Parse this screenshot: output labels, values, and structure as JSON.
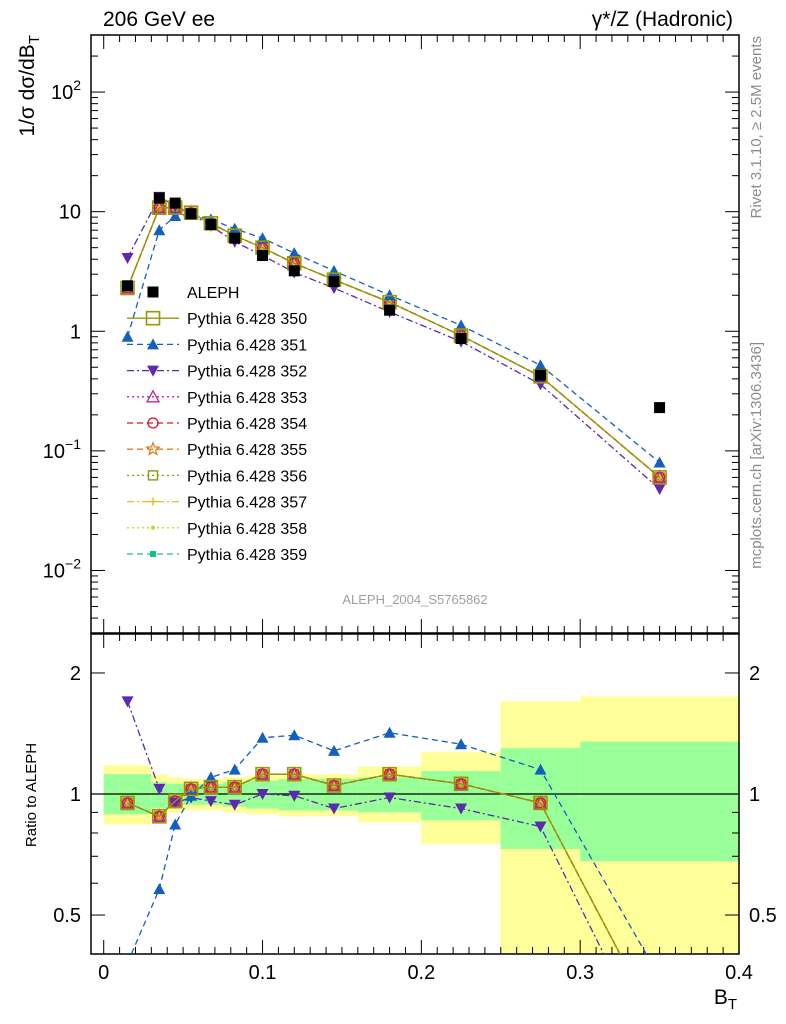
{
  "header": {
    "left": "206 GeV ee",
    "right": "γ*/Z (Hadronic)"
  },
  "side_text": {
    "rivet": "Rivet 3.1.10, ≥ 2.5M events",
    "mcplots": "mcplots.cern.ch [arXiv:1306.3436]"
  },
  "watermark": "ALEPH_2004_S5765862",
  "colors": {
    "band_inner": "#99ff99",
    "band_outer": "#ffff99"
  },
  "chart_data": [
    {
      "type": "scatter",
      "panel": "main",
      "title": "",
      "ylabel": "1/σ dσ/dB_T",
      "yscale": "log",
      "ylim": [
        0.003,
        300
      ],
      "xlim": [
        -0.008,
        0.4
      ],
      "ytick_labels": [
        "10^-2",
        "10^-1",
        "1",
        "10",
        "10^2"
      ],
      "x": [
        0.015,
        0.035,
        0.045,
        0.055,
        0.0675,
        0.0825,
        0.1,
        0.12,
        0.145,
        0.18,
        0.225,
        0.275,
        0.35
      ],
      "series": [
        {
          "name": "ALEPH",
          "color": "#000000",
          "marker": "square-filled",
          "dash": "none",
          "values": [
            2.4,
            13.0,
            11.8,
            9.6,
            7.8,
            6.0,
            4.3,
            3.2,
            2.6,
            1.5,
            0.87,
            0.43,
            0.23
          ]
        },
        {
          "name": "Pythia 6.428 350",
          "color": "#999900",
          "marker": "square-open-big",
          "dash": "solid",
          "values": [
            2.3,
            10.8,
            10.8,
            9.8,
            8.0,
            6.3,
            5.0,
            3.7,
            2.7,
            1.75,
            0.92,
            0.42,
            0.06
          ]
        },
        {
          "name": "Pythia 6.428 351",
          "color": "#1560bd",
          "marker": "triangle-up",
          "dash": "dashed",
          "values": [
            0.9,
            7.0,
            9.2,
            9.6,
            8.6,
            7.2,
            6.0,
            4.5,
            3.2,
            2.0,
            1.12,
            0.52,
            0.08
          ]
        },
        {
          "name": "Pythia 6.428 352",
          "color": "#5b2aad",
          "marker": "triangle-down",
          "dash": "dashdot",
          "values": [
            4.1,
            13.3,
            11.2,
            9.6,
            7.6,
            5.6,
            4.3,
            3.1,
            2.3,
            1.45,
            0.82,
            0.36,
            0.048
          ]
        },
        {
          "name": "Pythia 6.428 353",
          "color": "#c02299",
          "marker": "triangle-open",
          "dash": "dotted",
          "values": [
            2.3,
            10.8,
            10.8,
            9.8,
            8.0,
            6.3,
            5.0,
            3.7,
            2.7,
            1.75,
            0.92,
            0.42,
            0.06
          ]
        },
        {
          "name": "Pythia 6.428 354",
          "color": "#e0102f",
          "marker": "circle-open",
          "dash": "dashed",
          "values": [
            2.3,
            10.8,
            10.8,
            9.8,
            8.0,
            6.3,
            5.0,
            3.7,
            2.7,
            1.75,
            0.92,
            0.42,
            0.06
          ]
        },
        {
          "name": "Pythia 6.428 355",
          "color": "#f07a1a",
          "marker": "star-open",
          "dash": "dashed",
          "values": [
            2.3,
            10.8,
            10.8,
            9.8,
            8.0,
            6.3,
            5.0,
            3.7,
            2.7,
            1.75,
            0.92,
            0.42,
            0.06
          ]
        },
        {
          "name": "Pythia 6.428 356",
          "color": "#8a9a10",
          "marker": "square-open",
          "dash": "dotted",
          "values": [
            2.3,
            10.8,
            10.8,
            9.8,
            8.0,
            6.3,
            5.0,
            3.7,
            2.7,
            1.75,
            0.92,
            0.42,
            0.06
          ]
        },
        {
          "name": "Pythia 6.428 357",
          "color": "#e8c010",
          "marker": "plus",
          "dash": "dashdot",
          "values": [
            2.3,
            10.8,
            10.8,
            9.8,
            8.0,
            6.3,
            5.0,
            3.7,
            2.7,
            1.75,
            0.92,
            0.42,
            0.06
          ]
        },
        {
          "name": "Pythia 6.428 358",
          "color": "#b8e018",
          "marker": "dot",
          "dash": "dotted",
          "values": [
            2.3,
            10.8,
            10.8,
            9.8,
            8.0,
            6.3,
            5.0,
            3.7,
            2.7,
            1.75,
            0.92,
            0.42,
            0.06
          ]
        },
        {
          "name": "Pythia 6.428 359",
          "color": "#18c080",
          "marker": "square-small",
          "dash": "dashed",
          "values": [
            2.3,
            10.8,
            10.8,
            9.8,
            8.0,
            6.3,
            5.0,
            3.7,
            2.7,
            1.75,
            0.92,
            0.42,
            0.06
          ]
        }
      ]
    },
    {
      "type": "line",
      "panel": "ratio",
      "ylabel": "Ratio to ALEPH",
      "xlabel": "B_T",
      "yscale": "log",
      "ylim": [
        0.4,
        2.5
      ],
      "xlim": [
        -0.008,
        0.4
      ],
      "ytick_labels": [
        "0.5",
        "1",
        "2"
      ],
      "xtick_labels": [
        "0",
        "0.1",
        "0.2",
        "0.3",
        "0.4"
      ],
      "bins": [
        [
          0.0,
          0.01
        ],
        [
          0.01,
          0.03
        ],
        [
          0.03,
          0.04
        ],
        [
          0.04,
          0.05
        ],
        [
          0.05,
          0.06
        ],
        [
          0.06,
          0.075
        ],
        [
          0.075,
          0.09
        ],
        [
          0.09,
          0.11
        ],
        [
          0.11,
          0.13
        ],
        [
          0.13,
          0.16
        ],
        [
          0.16,
          0.2
        ],
        [
          0.2,
          0.25
        ],
        [
          0.25,
          0.3
        ],
        [
          0.3,
          0.4
        ]
      ],
      "band_inner": [
        [
          0.89,
          1.12
        ],
        [
          0.89,
          1.12
        ],
        [
          0.92,
          1.07
        ],
        [
          0.93,
          1.06
        ],
        [
          0.94,
          1.06
        ],
        [
          0.94,
          1.06
        ],
        [
          0.93,
          1.07
        ],
        [
          0.92,
          1.08
        ],
        [
          0.91,
          1.09
        ],
        [
          0.91,
          1.09
        ],
        [
          0.9,
          1.1
        ],
        [
          0.86,
          1.14
        ],
        [
          0.73,
          1.3
        ],
        [
          0.68,
          1.35
        ]
      ],
      "band_outer": [
        [
          0.84,
          1.18
        ],
        [
          0.84,
          1.18
        ],
        [
          0.88,
          1.12
        ],
        [
          0.9,
          1.1
        ],
        [
          0.91,
          1.09
        ],
        [
          0.91,
          1.09
        ],
        [
          0.9,
          1.1
        ],
        [
          0.89,
          1.11
        ],
        [
          0.88,
          1.12
        ],
        [
          0.88,
          1.12
        ],
        [
          0.85,
          1.17
        ],
        [
          0.75,
          1.27
        ],
        [
          0.4,
          1.7
        ],
        [
          0.4,
          1.75
        ]
      ],
      "x": [
        0.015,
        0.035,
        0.045,
        0.055,
        0.0675,
        0.0825,
        0.1,
        0.12,
        0.145,
        0.18,
        0.225,
        0.275,
        0.35
      ],
      "series": [
        {
          "name": "Pythia 6.428 350",
          "color": "#999900",
          "marker": "square-open-big",
          "dash": "solid",
          "values": [
            0.95,
            0.88,
            0.96,
            1.03,
            1.04,
            1.04,
            1.12,
            1.12,
            1.05,
            1.12,
            1.06,
            0.95,
            0.26
          ]
        },
        {
          "name": "Pythia 6.428 351",
          "color": "#1560bd",
          "marker": "triangle-up",
          "dash": "dashed",
          "values": [
            0.38,
            0.58,
            0.84,
            0.99,
            1.1,
            1.15,
            1.38,
            1.4,
            1.28,
            1.42,
            1.33,
            1.15,
            0.35
          ]
        },
        {
          "name": "Pythia 6.428 352",
          "color": "#5b2aad",
          "marker": "triangle-down",
          "dash": "dashdot",
          "values": [
            1.7,
            1.03,
            0.95,
            0.98,
            0.96,
            0.94,
            1.0,
            0.99,
            0.92,
            0.98,
            0.92,
            0.83,
            0.21
          ]
        },
        {
          "name": "Pythia 6.428 353",
          "color": "#c02299",
          "marker": "triangle-open",
          "dash": "dotted",
          "values": [
            0.95,
            0.88,
            0.96,
            1.03,
            1.04,
            1.04,
            1.12,
            1.12,
            1.05,
            1.12,
            1.06,
            0.95,
            0.26
          ]
        },
        {
          "name": "Pythia 6.428 354",
          "color": "#e0102f",
          "marker": "circle-open",
          "dash": "dashed",
          "values": [
            0.95,
            0.88,
            0.96,
            1.03,
            1.04,
            1.04,
            1.12,
            1.12,
            1.05,
            1.12,
            1.06,
            0.95,
            0.26
          ]
        },
        {
          "name": "Pythia 6.428 355",
          "color": "#f07a1a",
          "marker": "star-open",
          "dash": "dashed",
          "values": [
            0.95,
            0.88,
            0.96,
            1.03,
            1.04,
            1.04,
            1.12,
            1.12,
            1.05,
            1.12,
            1.06,
            0.95,
            0.26
          ]
        },
        {
          "name": "Pythia 6.428 356",
          "color": "#8a9a10",
          "marker": "square-open",
          "dash": "dotted",
          "values": [
            0.95,
            0.88,
            0.96,
            1.03,
            1.04,
            1.04,
            1.12,
            1.12,
            1.05,
            1.12,
            1.06,
            0.95,
            0.26
          ]
        },
        {
          "name": "Pythia 6.428 357",
          "color": "#e8c010",
          "marker": "plus",
          "dash": "dashdot",
          "values": [
            0.95,
            0.88,
            0.96,
            1.03,
            1.04,
            1.04,
            1.12,
            1.12,
            1.05,
            1.12,
            1.06,
            0.95,
            0.26
          ]
        },
        {
          "name": "Pythia 6.428 358",
          "color": "#b8e018",
          "marker": "dot",
          "dash": "dotted",
          "values": [
            0.95,
            0.88,
            0.96,
            1.03,
            1.04,
            1.04,
            1.12,
            1.12,
            1.05,
            1.12,
            1.06,
            0.95,
            0.26
          ]
        },
        {
          "name": "Pythia 6.428 359",
          "color": "#18c080",
          "marker": "square-small",
          "dash": "dashed",
          "values": [
            0.95,
            0.88,
            0.96,
            1.03,
            1.04,
            1.04,
            1.12,
            1.12,
            1.05,
            1.12,
            1.06,
            0.95,
            0.26
          ]
        }
      ]
    }
  ]
}
